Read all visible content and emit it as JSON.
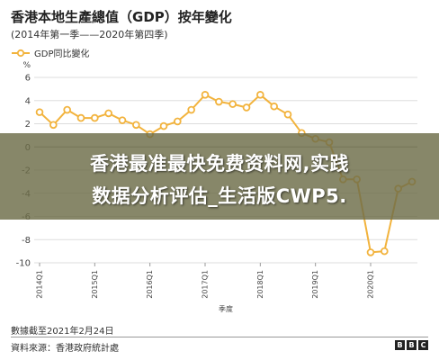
{
  "header": {
    "title": "香港本地生產總值（GDP）按年變化",
    "subtitle": "(2014年第一季——2020年第四季)",
    "legend_label": "GDP同比變化"
  },
  "overlay": {
    "line1": "香港最准最快免费资料网,实践",
    "line2": "数据分析评估_生活版CWP5."
  },
  "footer": {
    "date": "數據截至2021年2月24日",
    "source": "資料來源：香港政府統計處",
    "logo_letters": [
      "B",
      "B",
      "C"
    ]
  },
  "colors": {
    "line": "#f2b33d",
    "marker_fill": "#ffffff",
    "grid": "#dddddd",
    "axis_text": "#444444",
    "overlay": "#6c6c48"
  },
  "chart_data": {
    "type": "line",
    "title": "香港本地生產總值（GDP）按年變化",
    "subtitle": "(2014年第一季——2020年第四季)",
    "ylabel": "%",
    "xlabel": "季度",
    "ylim": [
      -10,
      6
    ],
    "yticks": [
      6,
      4,
      2,
      0,
      -2,
      -4,
      -6,
      -8,
      -10
    ],
    "grid": true,
    "legend": "top-left",
    "tick_labels": [
      "2014Q1",
      "2015Q1",
      "2016Q1",
      "2017Q1",
      "2018Q1",
      "2019Q1",
      "2020Q1"
    ],
    "x": [
      "2014Q1",
      "2014Q2",
      "2014Q3",
      "2014Q4",
      "2015Q1",
      "2015Q2",
      "2015Q3",
      "2015Q4",
      "2016Q1",
      "2016Q2",
      "2016Q3",
      "2016Q4",
      "2017Q1",
      "2017Q2",
      "2017Q3",
      "2017Q4",
      "2018Q1",
      "2018Q2",
      "2018Q3",
      "2018Q4",
      "2019Q1",
      "2019Q2",
      "2019Q3",
      "2019Q4",
      "2020Q1",
      "2020Q2",
      "2020Q3",
      "2020Q4"
    ],
    "series": [
      {
        "name": "GDP同比變化",
        "values": [
          3.0,
          1.9,
          3.2,
          2.5,
          2.5,
          2.9,
          2.3,
          1.9,
          1.1,
          1.8,
          2.2,
          3.2,
          4.5,
          3.9,
          3.7,
          3.4,
          4.5,
          3.5,
          2.8,
          1.2,
          0.7,
          0.4,
          -2.8,
          -2.8,
          -9.1,
          -9.0,
          -3.6,
          -3.0
        ]
      }
    ]
  }
}
